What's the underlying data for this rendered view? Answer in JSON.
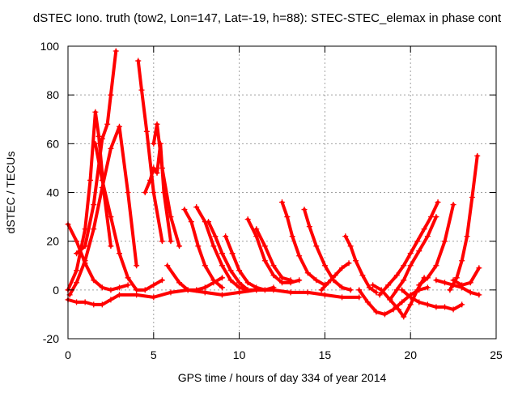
{
  "chart_data": {
    "type": "scatter",
    "title": "dSTEC Iono. truth (tow2, Lon=147, Lat=-19, h=88): STEC-STEC_elemax in phase cont",
    "xlabel": "GPS time / hours of day 334 of year 2014",
    "ylabel": "dSTEC  / TECUs",
    "xlim": [
      0,
      25
    ],
    "ylim": [
      -20,
      100
    ],
    "x_ticks": [
      "0",
      "5",
      "10",
      "15",
      "20",
      "25"
    ],
    "y_ticks": [
      "-20",
      "0",
      "20",
      "40",
      "60",
      "80",
      "100"
    ],
    "grid": true,
    "marker": "+",
    "color": "#ff0000",
    "series": [
      {
        "x": [
          0.0,
          0.5,
          1.0,
          1.5,
          2.0,
          2.5,
          3.0,
          3.5
        ],
        "y": [
          27,
          20,
          11,
          4,
          1,
          0,
          1,
          2
        ]
      },
      {
        "x": [
          0.1,
          0.5,
          1.0,
          1.5,
          2.0,
          2.5,
          3.0,
          3.5,
          4.0
        ],
        "y": [
          -2,
          3,
          12,
          25,
          42,
          58,
          67,
          40,
          10
        ]
      },
      {
        "x": [
          0.0,
          0.5,
          1.0,
          1.3,
          1.6,
          1.8,
          2.1,
          2.5
        ],
        "y": [
          0,
          8,
          25,
          45,
          73,
          63,
          40,
          18
        ]
      },
      {
        "x": [
          0.5,
          1.0,
          1.5,
          2.0,
          2.3,
          2.5,
          2.8
        ],
        "y": [
          15,
          18,
          35,
          62,
          68,
          80,
          98
        ]
      },
      {
        "x": [
          1.6,
          2.0,
          2.5,
          3.0,
          3.5,
          4.0,
          4.5,
          5.0,
          5.5
        ],
        "y": [
          60,
          45,
          30,
          15,
          5,
          0,
          0,
          2,
          4
        ]
      },
      {
        "x": [
          4.1,
          4.3,
          4.6,
          5.0,
          5.5
        ],
        "y": [
          94,
          82,
          65,
          40,
          20
        ]
      },
      {
        "x": [
          4.5,
          4.8,
          5.0,
          5.2,
          5.4,
          5.6,
          6.0
        ],
        "y": [
          40,
          45,
          50,
          48,
          60,
          40,
          20
        ]
      },
      {
        "x": [
          5.0,
          5.2,
          5.5,
          6.0,
          6.5
        ],
        "y": [
          60,
          68,
          50,
          30,
          18
        ]
      },
      {
        "x": [
          5.8,
          6.5,
          7.0,
          7.5,
          8.0,
          8.5,
          9.0
        ],
        "y": [
          10,
          3,
          0,
          0,
          1,
          3,
          5
        ]
      },
      {
        "x": [
          6.8,
          7.2,
          7.6,
          8.0,
          8.5,
          9.0
        ],
        "y": [
          33,
          28,
          18,
          10,
          4,
          1
        ]
      },
      {
        "x": [
          7.5,
          8.0,
          8.5,
          9.0,
          9.5,
          10.0,
          10.5
        ],
        "y": [
          34,
          28,
          18,
          10,
          4,
          1,
          0
        ]
      },
      {
        "x": [
          8.2,
          8.6,
          9.0,
          9.5,
          10.0,
          10.5,
          11.0
        ],
        "y": [
          28,
          22,
          15,
          8,
          3,
          0,
          0
        ]
      },
      {
        "x": [
          9.2,
          9.6,
          10.0,
          10.5,
          11.0,
          11.5,
          12.0
        ],
        "y": [
          22,
          15,
          8,
          3,
          1,
          0,
          1
        ]
      },
      {
        "x": [
          10.5,
          11.0,
          11.5,
          12.0,
          12.5,
          13.0,
          13.5
        ],
        "y": [
          29,
          22,
          12,
          6,
          3,
          3,
          4
        ]
      },
      {
        "x": [
          11.0,
          11.5,
          12.0,
          12.5,
          13.0
        ],
        "y": [
          25,
          18,
          10,
          5,
          4
        ]
      },
      {
        "x": [
          12.5,
          12.8,
          13.1,
          13.5,
          14.0,
          14.5,
          15.0
        ],
        "y": [
          36,
          30,
          22,
          14,
          7,
          4,
          2
        ]
      },
      {
        "x": [
          13.8,
          14.1,
          14.5,
          15.0,
          15.5,
          16.0,
          16.5
        ],
        "y": [
          33,
          26,
          18,
          10,
          4,
          1,
          0
        ]
      },
      {
        "x": [
          14.8,
          15.2,
          15.6,
          16.0,
          16.4
        ],
        "y": [
          0,
          3,
          6,
          9,
          11
        ]
      },
      {
        "x": [
          16.2,
          16.5,
          16.8,
          17.2,
          17.6,
          18.0
        ],
        "y": [
          22,
          18,
          12,
          6,
          1,
          -1
        ]
      },
      {
        "x": [
          0.0,
          0.5,
          1.0,
          1.5,
          2.0,
          2.5,
          3.0,
          4.0,
          5.0,
          6.0,
          7.0,
          8.0,
          9.0,
          10.0,
          11.0,
          12.0,
          13.0,
          14.0,
          15.0,
          16.0,
          17.0
        ],
        "y": [
          -4,
          -5,
          -5,
          -6,
          -6,
          -4,
          -2,
          -2,
          -3,
          -1,
          0,
          -1,
          -2,
          -1,
          0,
          0,
          -1,
          -1,
          -2,
          -3,
          -3
        ]
      },
      {
        "x": [
          17.0,
          17.5,
          18.0,
          18.5,
          19.0,
          19.5,
          20.0,
          20.5,
          21.0
        ],
        "y": [
          0,
          -5,
          -9,
          -10,
          -8,
          -5,
          -2,
          0,
          1
        ]
      },
      {
        "x": [
          17.8,
          18.3,
          18.8,
          19.3,
          19.6,
          20.0,
          20.4,
          20.8
        ],
        "y": [
          2,
          0,
          -4,
          -8,
          -11,
          -6,
          0,
          5
        ]
      },
      {
        "x": [
          18.2,
          18.7,
          19.2,
          19.6,
          20.0,
          20.4,
          20.8,
          21.2,
          21.6
        ],
        "y": [
          -2,
          2,
          6,
          10,
          15,
          20,
          25,
          30,
          36
        ]
      },
      {
        "x": [
          18.8,
          19.2,
          19.6,
          20.0,
          20.5,
          21.0,
          21.5
        ],
        "y": [
          -4,
          0,
          4,
          10,
          16,
          22,
          30
        ]
      },
      {
        "x": [
          19.5,
          20.0,
          20.5,
          21.0,
          21.5,
          22.0,
          22.5,
          23.0
        ],
        "y": [
          0,
          -3,
          -5,
          -6,
          -7,
          -7,
          -8,
          -6
        ]
      },
      {
        "x": [
          20.5,
          21.0,
          21.5,
          22.0,
          22.5
        ],
        "y": [
          2,
          5,
          10,
          20,
          35
        ]
      },
      {
        "x": [
          21.5,
          22.0,
          22.5,
          23.0,
          23.5,
          24.0
        ],
        "y": [
          4,
          3,
          2,
          1,
          -1,
          -2
        ]
      },
      {
        "x": [
          22.3,
          22.7,
          23.0,
          23.3,
          23.6,
          23.9
        ],
        "y": [
          0,
          5,
          12,
          22,
          38,
          55
        ]
      },
      {
        "x": [
          22.5,
          23.0,
          23.5,
          24.0
        ],
        "y": [
          4,
          2,
          3,
          9
        ]
      }
    ]
  }
}
